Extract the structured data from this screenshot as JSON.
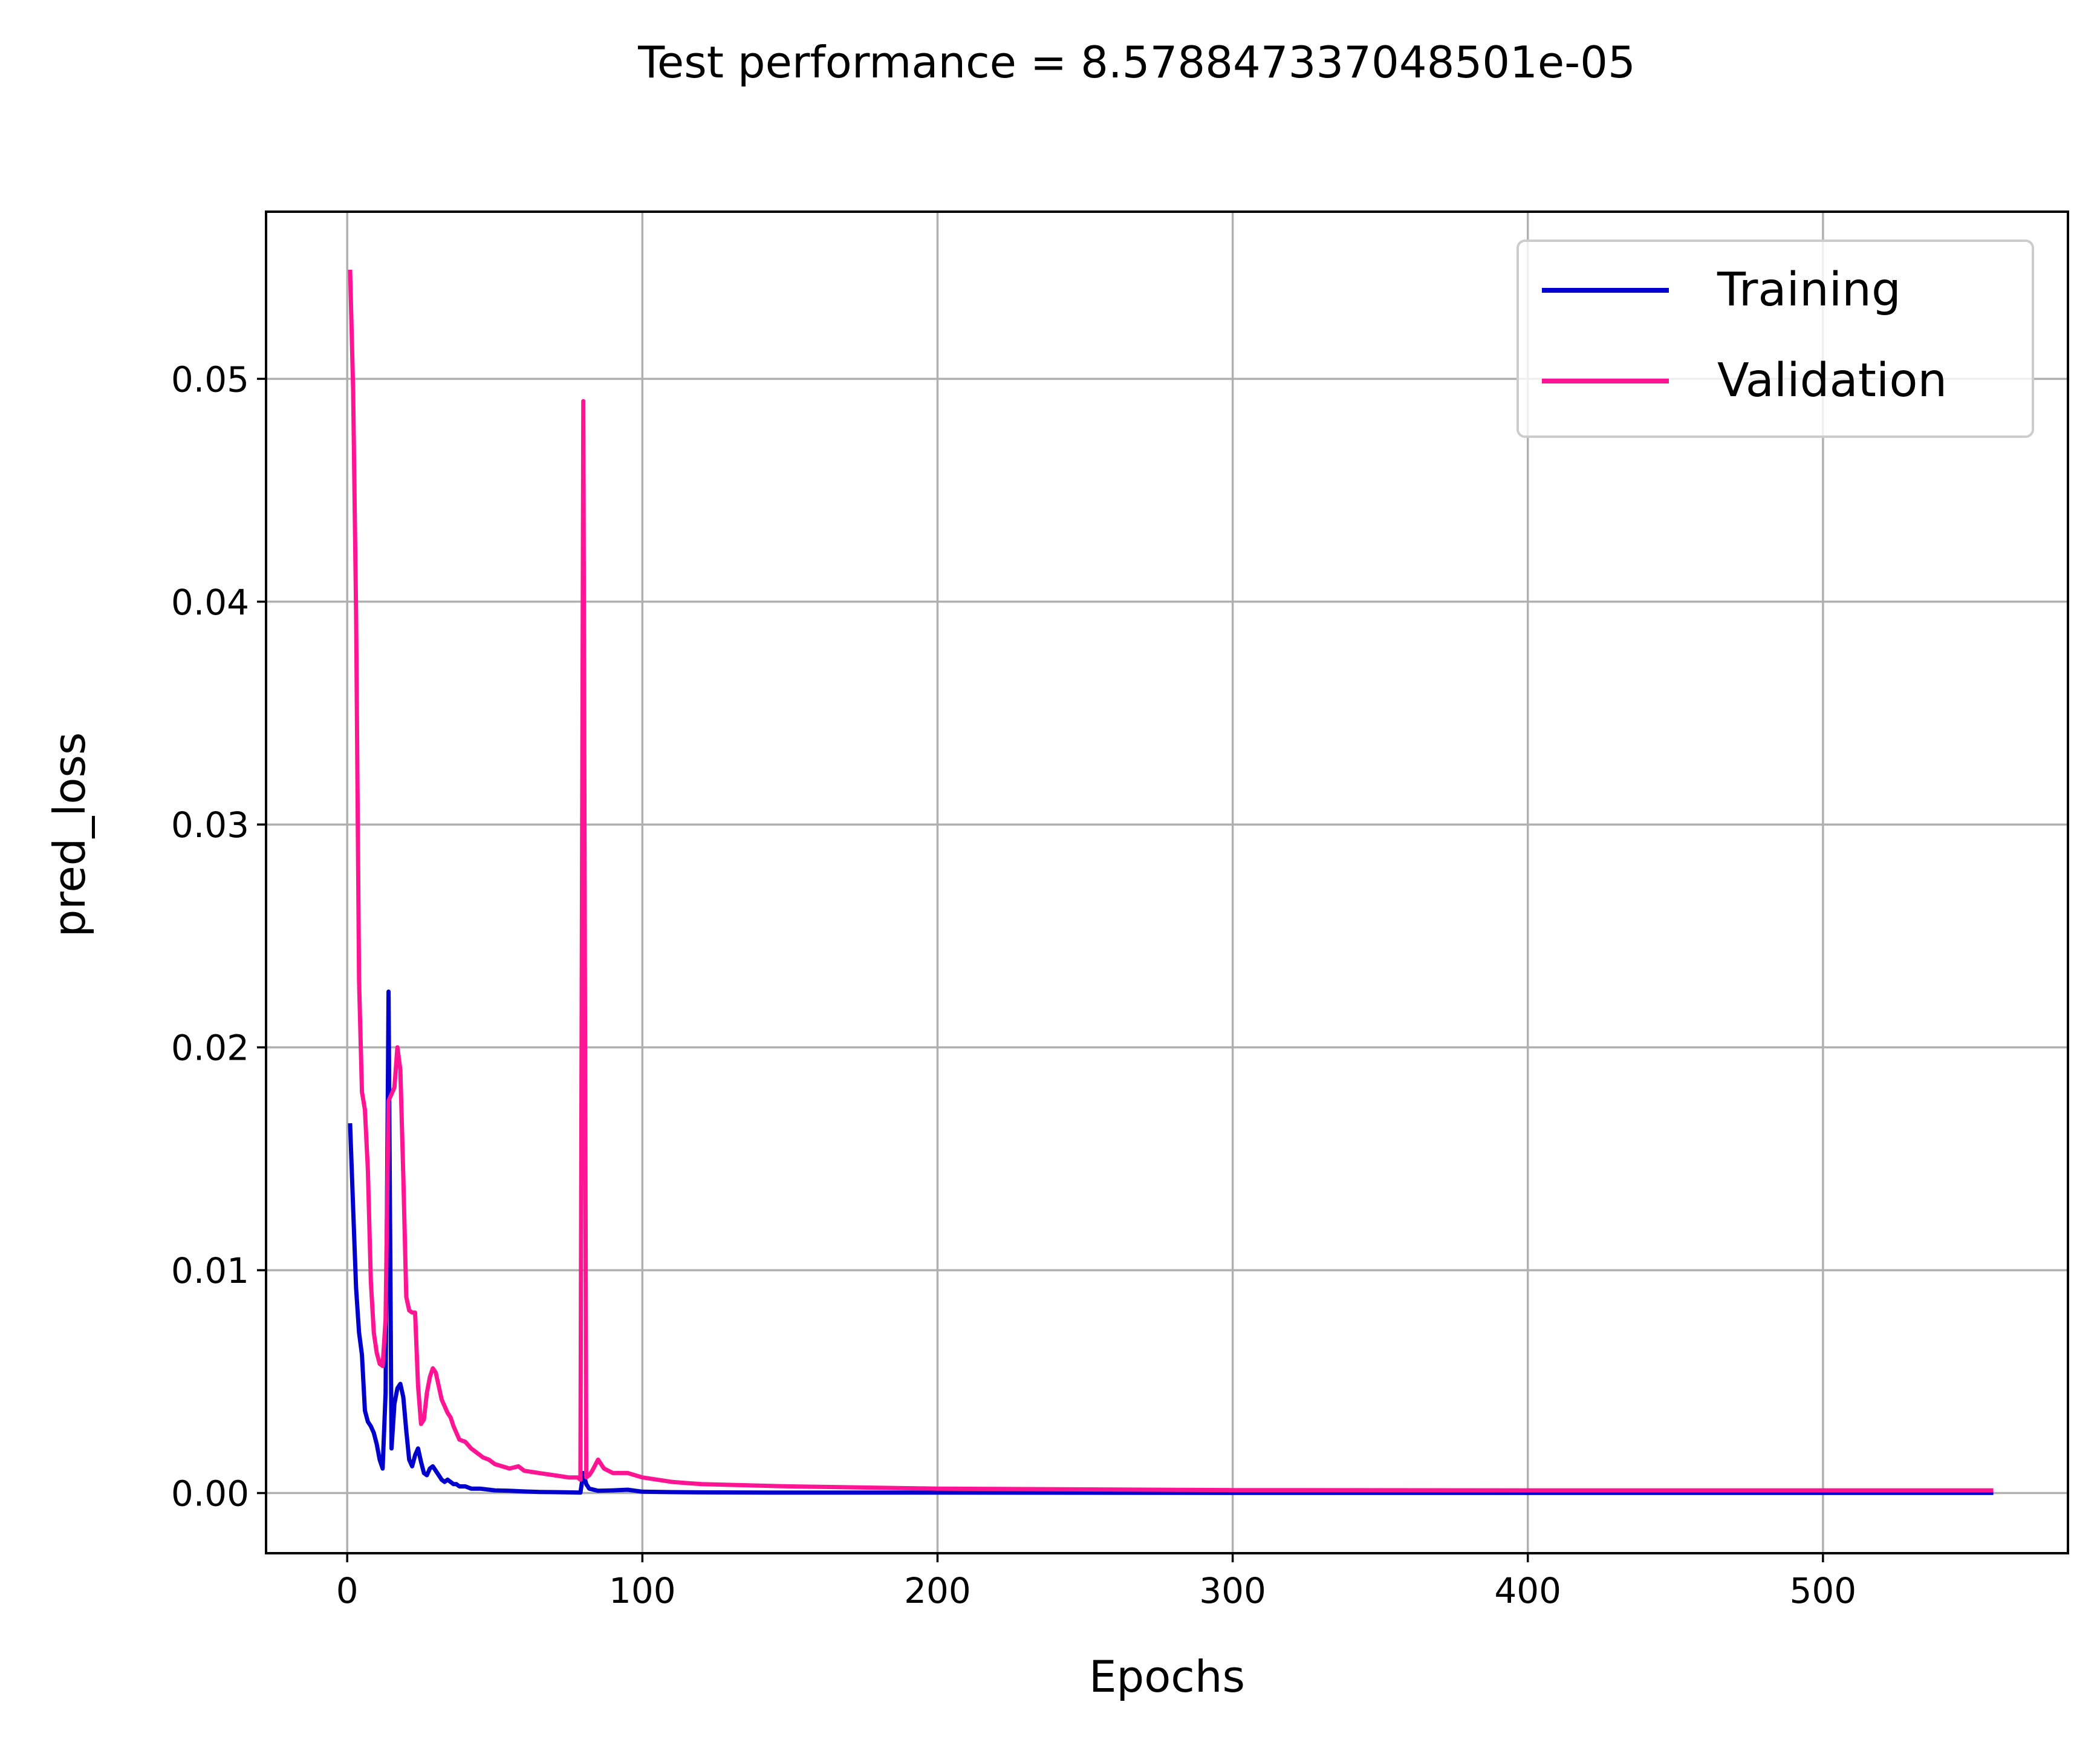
{
  "chart_data": {
    "type": "line",
    "title": "Test performance = 8.578847337048501e-05",
    "xlabel": "Epochs",
    "ylabel": "pred_loss",
    "xlim": [
      -27.5,
      583
    ],
    "ylim": [
      -0.0027,
      0.0575
    ],
    "xticks": [
      0,
      100,
      200,
      300,
      400,
      500
    ],
    "yticks": [
      0.0,
      0.01,
      0.02,
      0.03,
      0.04,
      0.05
    ],
    "xtick_labels": [
      "0",
      "100",
      "200",
      "300",
      "400",
      "500"
    ],
    "ytick_labels": [
      "0.00",
      "0.01",
      "0.02",
      "0.03",
      "0.04",
      "0.05"
    ],
    "grid": true,
    "legend_position": "top-right",
    "series": [
      {
        "name": "Training",
        "color": "#0000cc",
        "x": [
          1,
          2,
          3,
          4,
          5,
          6,
          7,
          8,
          9,
          10,
          11,
          12,
          13,
          14,
          15,
          16,
          17,
          18,
          19,
          20,
          21,
          22,
          23,
          24,
          25,
          26,
          27,
          28,
          29,
          30,
          31,
          32,
          33,
          34,
          35,
          36,
          37,
          38,
          40,
          42,
          45,
          50,
          55,
          60,
          65,
          70,
          75,
          79,
          80,
          81,
          82,
          85,
          90,
          95,
          100,
          110,
          120,
          150,
          200,
          300,
          400,
          500,
          557
        ],
        "y": [
          0.0165,
          0.0128,
          0.0092,
          0.0072,
          0.0062,
          0.0037,
          0.0032,
          0.003,
          0.0027,
          0.0022,
          0.0015,
          0.0011,
          0.0045,
          0.0225,
          0.002,
          0.004,
          0.0047,
          0.0049,
          0.0043,
          0.0028,
          0.0015,
          0.0012,
          0.0017,
          0.002,
          0.0014,
          0.0009,
          0.0008,
          0.0011,
          0.0012,
          0.001,
          0.0008,
          0.0006,
          0.0005,
          0.0006,
          0.0005,
          0.0004,
          0.0004,
          0.0003,
          0.0003,
          0.0002,
          0.0002,
          0.00012,
          0.0001,
          7e-05,
          5e-05,
          4e-05,
          3e-05,
          2e-05,
          0.0009,
          0.0004,
          0.0002,
          0.0001,
          0.00012,
          0.00015,
          6e-05,
          4e-05,
          3e-05,
          2e-05,
          2e-05,
          1e-05,
          1e-05,
          1e-05,
          1e-05
        ]
      },
      {
        "name": "Validation",
        "color": "#ff1493",
        "x": [
          1,
          2,
          3,
          4,
          5,
          6,
          7,
          8,
          9,
          10,
          11,
          12,
          13,
          14,
          15,
          16,
          17,
          18,
          19,
          20,
          21,
          22,
          23,
          24,
          25,
          26,
          27,
          28,
          29,
          30,
          31,
          32,
          33,
          34,
          35,
          36,
          38,
          40,
          42,
          44,
          46,
          48,
          50,
          55,
          58,
          60,
          65,
          70,
          75,
          78,
          79,
          80,
          81,
          82,
          83,
          85,
          87,
          90,
          95,
          100,
          110,
          120,
          150,
          200,
          300,
          400,
          500,
          557
        ],
        "y": [
          0.0548,
          0.0495,
          0.0395,
          0.023,
          0.018,
          0.0172,
          0.0145,
          0.0095,
          0.0072,
          0.0063,
          0.0058,
          0.0057,
          0.0078,
          0.0176,
          0.0179,
          0.0182,
          0.02,
          0.019,
          0.0142,
          0.0088,
          0.0082,
          0.0081,
          0.0081,
          0.0048,
          0.0031,
          0.0033,
          0.0045,
          0.0052,
          0.0056,
          0.0054,
          0.0048,
          0.0042,
          0.0039,
          0.0036,
          0.0034,
          0.003,
          0.0024,
          0.0023,
          0.002,
          0.0018,
          0.0016,
          0.0015,
          0.0013,
          0.0011,
          0.0012,
          0.001,
          0.0009,
          0.0008,
          0.0007,
          0.0007,
          0.0006,
          0.049,
          0.0007,
          0.0008,
          0.001,
          0.0015,
          0.0011,
          0.0009,
          0.0009,
          0.0007,
          0.0005,
          0.0004,
          0.0003,
          0.0002,
          0.00013,
          0.00012,
          0.00012,
          0.00012
        ]
      }
    ]
  }
}
